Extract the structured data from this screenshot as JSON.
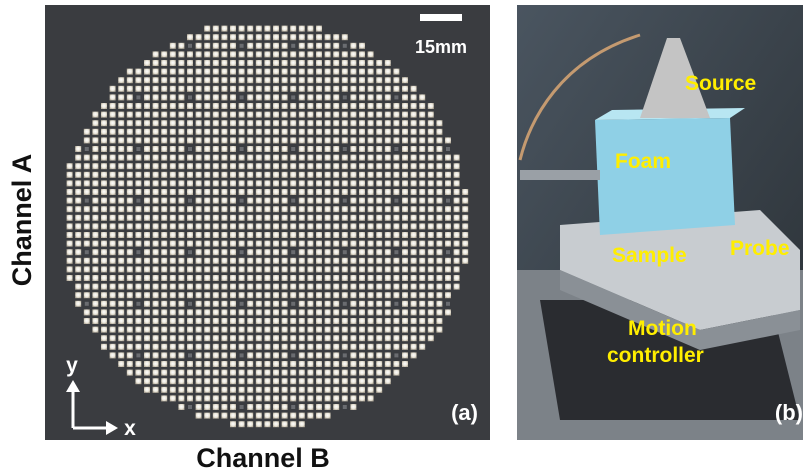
{
  "panel_a": {
    "scale_bar": "15mm",
    "y_label": "Channel A",
    "x_label": "Channel B",
    "axis_y": "y",
    "axis_x": "x",
    "tag": "(a)"
  },
  "panel_b": {
    "source": "Source",
    "foam": "Foam",
    "probe": "Probe",
    "sample": "Sample",
    "motion_controller": [
      "Motion",
      "controller"
    ],
    "tag": "(b)"
  }
}
